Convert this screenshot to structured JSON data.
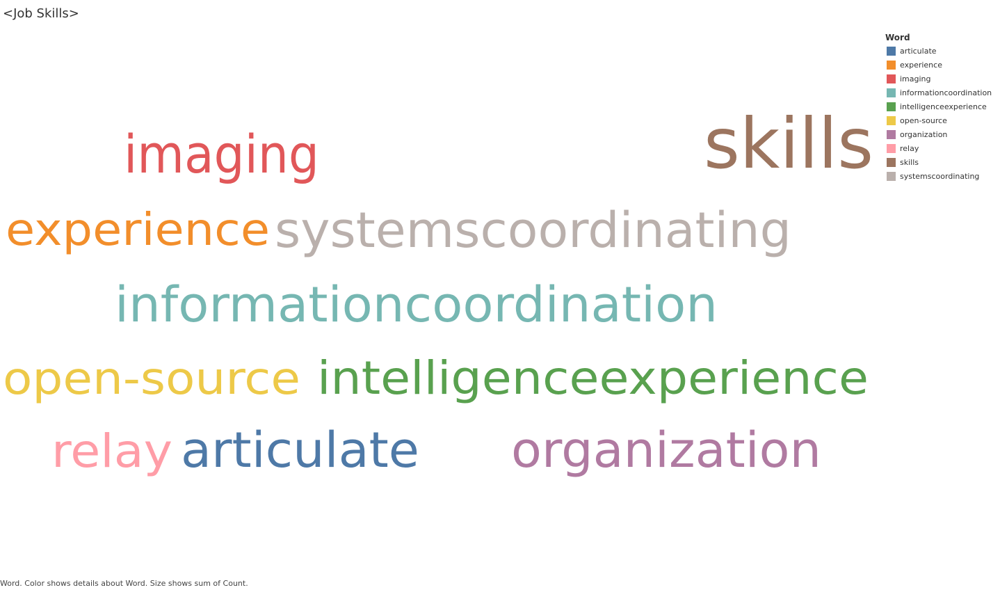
{
  "sheet": {
    "title": "<Job Skills>",
    "caption": "Word.  Color shows details about Word.  Size shows sum of Count."
  },
  "legend": {
    "title": "Word",
    "items": [
      {
        "label": "articulate",
        "color": "#4e79a7"
      },
      {
        "label": "experience",
        "color": "#f28e2b"
      },
      {
        "label": "imaging",
        "color": "#e15759"
      },
      {
        "label": "informationcoordination",
        "color": "#76b7b2"
      },
      {
        "label": "intelligenceexperience",
        "color": "#59a14f"
      },
      {
        "label": "open-source",
        "color": "#edc948"
      },
      {
        "label": "organization",
        "color": "#b07aa1"
      },
      {
        "label": "relay",
        "color": "#ff9da7"
      },
      {
        "label": "skills",
        "color": "#9c755f"
      },
      {
        "label": "systemscoordinating",
        "color": "#bab0ac"
      }
    ]
  },
  "chart_data": {
    "type": "wordcloud",
    "encoding": {
      "color": "Word",
      "size": "sum of Count"
    },
    "words": [
      {
        "word": "articulate",
        "color": "#4e79a7"
      },
      {
        "word": "experience",
        "color": "#f28e2b"
      },
      {
        "word": "imaging",
        "color": "#e15759"
      },
      {
        "word": "informationcoordination",
        "color": "#76b7b2"
      },
      {
        "word": "intelligenceexperience",
        "color": "#59a14f"
      },
      {
        "word": "open-source",
        "color": "#edc948"
      },
      {
        "word": "organization",
        "color": "#b07aa1"
      },
      {
        "word": "relay",
        "color": "#ff9da7"
      },
      {
        "word": "skills",
        "color": "#9c755f"
      },
      {
        "word": "systemscoordinating",
        "color": "#bab0ac"
      }
    ]
  }
}
